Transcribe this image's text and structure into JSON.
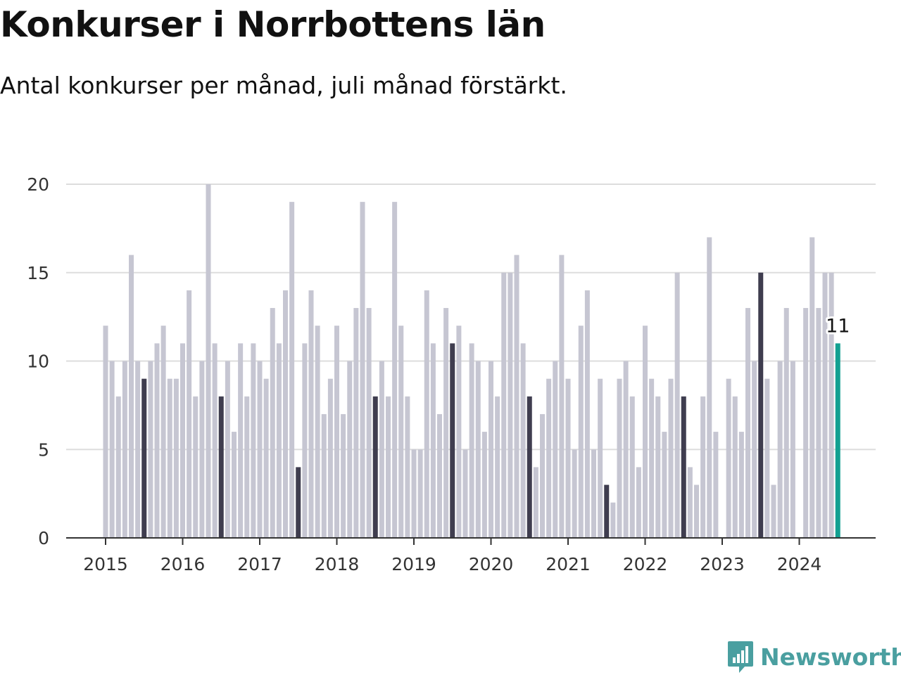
{
  "header": {
    "title": "Konkurser i Norrbottens län",
    "subtitle": "Antal konkurser per månad, juli månad förstärkt."
  },
  "brand": {
    "name": "Newsworthy",
    "icon": "newsworthy-chart-bubble-icon",
    "color": "#4a9fa0"
  },
  "colors": {
    "bar": "#c6c6d2",
    "highlight": "#3f3d4f",
    "latest": "#12a091",
    "grid": "#dddddd",
    "axis": "#333333"
  },
  "chart_data": {
    "type": "bar",
    "title": "Konkurser i Norrbottens län",
    "subtitle": "Antal konkurser per månad, juli månad förstärkt.",
    "start": "2015-01",
    "frequency": "monthly",
    "highlight_month": 7,
    "ylim": [
      0,
      20
    ],
    "yticks": [
      0,
      5,
      10,
      15,
      20
    ],
    "xticks": [
      "2015",
      "2016",
      "2017",
      "2018",
      "2019",
      "2020",
      "2021",
      "2022",
      "2023",
      "2024"
    ],
    "grid": true,
    "values": [
      12,
      10,
      8,
      10,
      16,
      10,
      9,
      10,
      11,
      12,
      9,
      9,
      11,
      14,
      8,
      10,
      20,
      11,
      8,
      10,
      6,
      11,
      8,
      11,
      10,
      9,
      13,
      11,
      14,
      19,
      4,
      11,
      14,
      12,
      7,
      9,
      12,
      7,
      10,
      13,
      19,
      13,
      8,
      10,
      8,
      19,
      12,
      8,
      5,
      5,
      14,
      11,
      7,
      13,
      11,
      12,
      5,
      11,
      10,
      6,
      10,
      8,
      15,
      15,
      16,
      11,
      8,
      4,
      7,
      9,
      10,
      16,
      9,
      5,
      12,
      14,
      5,
      9,
      3,
      2,
      9,
      10,
      8,
      4,
      12,
      9,
      8,
      6,
      9,
      15,
      8,
      4,
      3,
      8,
      17,
      6,
      0,
      9,
      8,
      6,
      13,
      10,
      15,
      9,
      3,
      10,
      13,
      10,
      0,
      13,
      17,
      13,
      15,
      15,
      11
    ],
    "latest_label": "11"
  }
}
